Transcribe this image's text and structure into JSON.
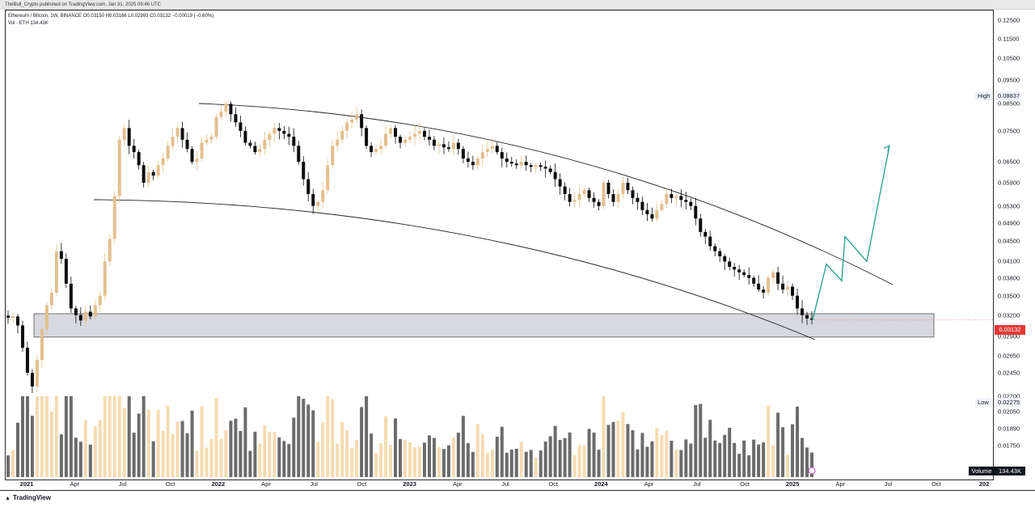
{
  "header": {
    "publisher_line": "TheBull_Crypto published on TradingView.com, Jan 31, 2025 09:46 UTC"
  },
  "legend": {
    "line1": "Ethereum / Bitcoin, 1W, BINANCE  O0.03150  H0.03166  L0.02993  C0.03132  −0.00019 (−0.60%)",
    "line2": "Vol · ETH  134.43K"
  },
  "footer": {
    "brand": "TradingView"
  },
  "chart_data": {
    "type": "candlestick",
    "symbol": "Ethereum / Bitcoin",
    "interval": "1W",
    "exchange": "BINANCE",
    "y_scale": "log",
    "ylim": [
      0.0163,
      0.1275
    ],
    "price_ticks": [
      "0.12500",
      "0.11500",
      "0.10500",
      "0.09500",
      "0.08500",
      "0.07500",
      "0.06500",
      "0.05900",
      "0.05300",
      "0.04900",
      "0.04500",
      "0.04100",
      "0.03800",
      "0.03500",
      "0.03200",
      "0.02900",
      "0.02650",
      "0.02450",
      "0.02200",
      "0.02050",
      "0.01890",
      "0.01750"
    ],
    "x_ticks": [
      {
        "label": "2021",
        "year": true
      },
      {
        "label": "Apr"
      },
      {
        "label": "Jul"
      },
      {
        "label": "Oct"
      },
      {
        "label": "2022",
        "year": true
      },
      {
        "label": "Apr"
      },
      {
        "label": "Jul"
      },
      {
        "label": "Oct"
      },
      {
        "label": "2023",
        "year": true
      },
      {
        "label": "Apr"
      },
      {
        "label": "Jul"
      },
      {
        "label": "Oct"
      },
      {
        "label": "2024",
        "year": true
      },
      {
        "label": "Apr"
      },
      {
        "label": "Jul"
      },
      {
        "label": "Oct"
      },
      {
        "label": "2025",
        "year": true
      },
      {
        "label": "Apr"
      },
      {
        "label": "Jul"
      },
      {
        "label": "Oct"
      },
      {
        "label": "202",
        "year": true
      }
    ],
    "high": {
      "tag": "High",
      "value": "0.08837"
    },
    "low": {
      "tag": "Low",
      "value": "0.02275"
    },
    "current_price": "0.03132",
    "volume": {
      "tag": "Volume",
      "value": "134.43K"
    },
    "up_color": "#e2c08d",
    "down_color": "#0d0d0d",
    "vol_up_color": "#f5dbb0",
    "vol_down_color": "#6b6b6b",
    "projection_color": "#1e9e88",
    "zone_color": "#d7d9de",
    "weekly_closes": [
      0.0316,
      0.0318,
      0.0305,
      0.0275,
      0.0245,
      0.023,
      0.026,
      0.03,
      0.0335,
      0.0355,
      0.043,
      0.0415,
      0.037,
      0.033,
      0.032,
      0.0312,
      0.0325,
      0.0318,
      0.0335,
      0.035,
      0.041,
      0.0455,
      0.0555,
      0.072,
      0.076,
      0.07,
      0.068,
      0.064,
      0.059,
      0.062,
      0.061,
      0.064,
      0.066,
      0.07,
      0.073,
      0.076,
      0.072,
      0.069,
      0.065,
      0.066,
      0.071,
      0.072,
      0.073,
      0.08,
      0.082,
      0.085,
      0.081,
      0.078,
      0.075,
      0.071,
      0.07,
      0.068,
      0.069,
      0.072,
      0.074,
      0.076,
      0.075,
      0.074,
      0.073,
      0.07,
      0.065,
      0.06,
      0.056,
      0.053,
      0.054,
      0.057,
      0.064,
      0.07,
      0.072,
      0.075,
      0.078,
      0.079,
      0.081,
      0.076,
      0.07,
      0.068,
      0.069,
      0.07,
      0.074,
      0.076,
      0.073,
      0.071,
      0.072,
      0.073,
      0.074,
      0.075,
      0.073,
      0.072,
      0.07,
      0.0705,
      0.0695,
      0.069,
      0.071,
      0.069,
      0.066,
      0.065,
      0.064,
      0.066,
      0.068,
      0.069,
      0.07,
      0.068,
      0.066,
      0.065,
      0.0645,
      0.064,
      0.065,
      0.064,
      0.0635,
      0.064,
      0.0635,
      0.063,
      0.062,
      0.06,
      0.058,
      0.056,
      0.054,
      0.0545,
      0.056,
      0.057,
      0.055,
      0.054,
      0.053,
      0.059,
      0.056,
      0.054,
      0.056,
      0.059,
      0.057,
      0.055,
      0.054,
      0.052,
      0.051,
      0.05,
      0.052,
      0.0535,
      0.056,
      0.055,
      0.0555,
      0.0545,
      0.054,
      0.053,
      0.05,
      0.047,
      0.046,
      0.044,
      0.043,
      0.042,
      0.041,
      0.04,
      0.0395,
      0.039,
      0.0385,
      0.038,
      0.037,
      0.036,
      0.0355,
      0.038,
      0.039,
      0.037,
      0.036,
      0.0365,
      0.035,
      0.033,
      0.032,
      0.0315,
      0.0313
    ],
    "annotations": {
      "upper_trendline": "descending curved channel top",
      "lower_trendline": "descending curved channel bottom",
      "support_zone": [
        0.0289,
        0.0322
      ],
      "projection_path": [
        0.0313,
        0.0405,
        0.0375,
        0.046,
        0.041,
        0.07
      ]
    }
  }
}
